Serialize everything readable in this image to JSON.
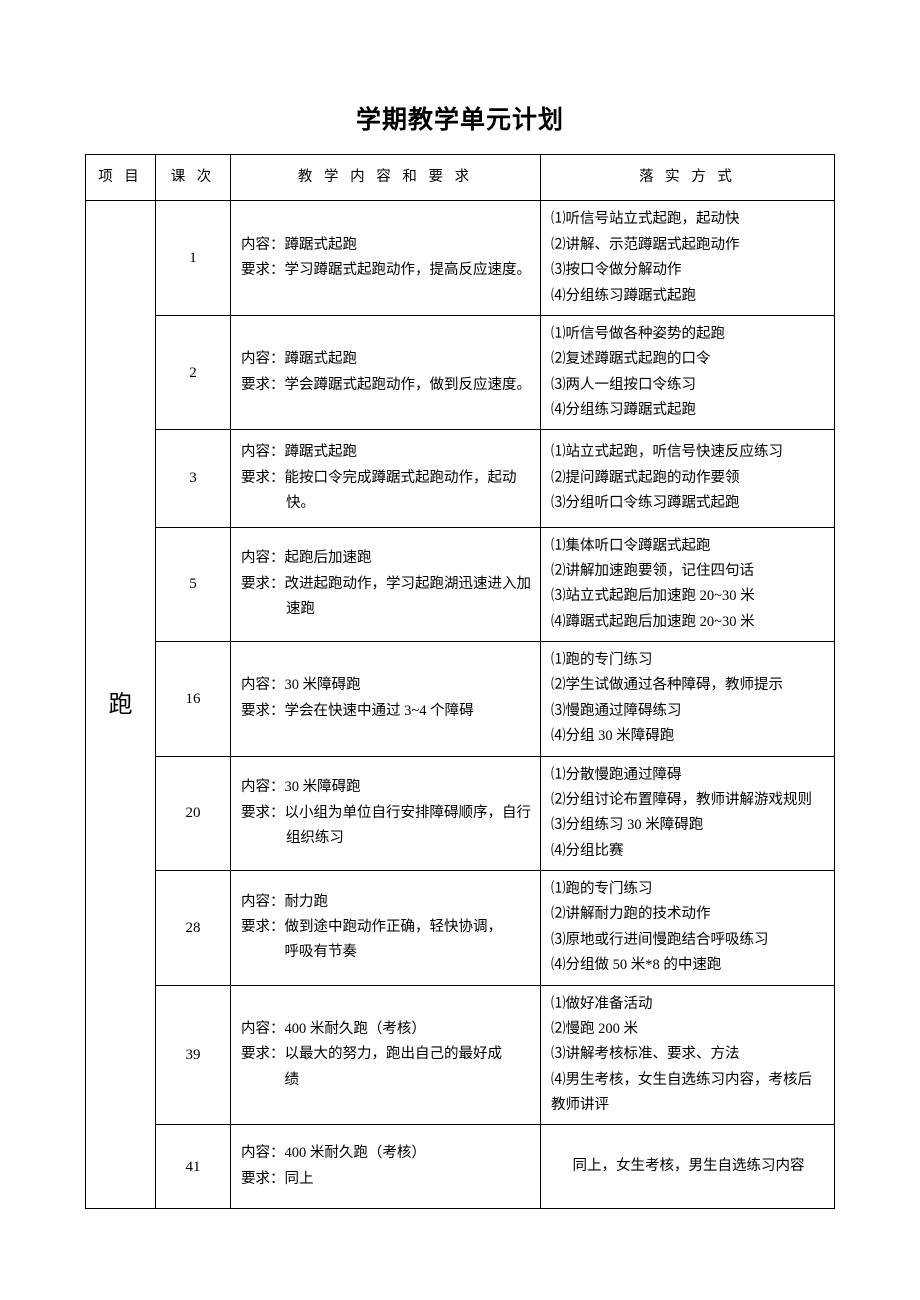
{
  "title": "学期教学单元计划",
  "headers": {
    "project": "项 目",
    "lesson": "课 次",
    "content": "教 学 内 容 和 要 求",
    "method": "落  实  方  式"
  },
  "project": "跑",
  "rows": [
    {
      "lesson": "1",
      "content_l1": "内容：蹲踞式起跑",
      "content_l2": "要求：学习蹲踞式起跑动作，提高反应速度。",
      "methods": [
        "⑴听信号站立式起跑，起动快",
        "⑵讲解、示范蹲踞式起跑动作",
        "⑶按口令做分解动作",
        "⑷分组练习蹲踞式起跑"
      ]
    },
    {
      "lesson": "2",
      "content_l1": "内容：蹲踞式起跑",
      "content_l2": "要求：学会蹲踞式起跑动作，做到反应速度。",
      "methods": [
        "⑴听信号做各种姿势的起跑",
        "⑵复述蹲踞式起跑的口令",
        "⑶两人一组按口令练习",
        "⑷分组练习蹲踞式起跑"
      ]
    },
    {
      "lesson": "3",
      "content_l1": "内容：蹲踞式起跑",
      "content_l2": "要求：能按口令完成蹲踞式起跑动作，起动快。",
      "methods": [
        "⑴站立式起跑，听信号快速反应练习",
        "⑵提问蹲踞式起跑的动作要领",
        "⑶分组听口令练习蹲踞式起跑"
      ]
    },
    {
      "lesson": "5",
      "content_l1": "内容：起跑后加速跑",
      "content_l2": "要求：改进起跑动作，学习起跑湖迅速进入加速跑",
      "methods": [
        "⑴集体听口令蹲踞式起跑",
        "⑵讲解加速跑要领，记住四句话",
        "⑶站立式起跑后加速跑 20~30 米",
        "⑷蹲踞式起跑后加速跑 20~30 米"
      ]
    },
    {
      "lesson": "16",
      "content_l1": "内容：30 米障碍跑",
      "content_l2": "要求：学会在快速中通过 3~4 个障碍",
      "methods": [
        "⑴跑的专门练习",
        "⑵学生试做通过各种障碍，教师提示",
        "⑶慢跑通过障碍练习",
        "⑷分组 30 米障碍跑"
      ]
    },
    {
      "lesson": "20",
      "content_l1": "内容：30 米障碍跑",
      "content_l2": "要求：以小组为单位自行安排障碍顺序，自行组织练习",
      "methods": [
        "⑴分散慢跑通过障碍",
        "⑵分组讨论布置障碍，教师讲解游戏规则",
        "⑶分组练习 30 米障碍跑",
        "⑷分组比赛"
      ]
    },
    {
      "lesson": "28",
      "content_l1": "内容：耐力跑",
      "content_l2": "要求：做到途中跑动作正确，轻快协调，",
      "content_l3": "呼吸有节奏",
      "methods": [
        "⑴跑的专门练习",
        "⑵讲解耐力跑的技术动作",
        "⑶原地或行进间慢跑结合呼吸练习",
        "⑷分组做 50 米*8 的中速跑"
      ]
    },
    {
      "lesson": "39",
      "content_l1": "内容：400 米耐久跑（考核）",
      "content_l2": "要求：以最大的努力，跑出自己的最好成",
      "content_l3": "绩",
      "methods": [
        "⑴做好准备活动",
        "⑵慢跑 200 米",
        "⑶讲解考核标准、要求、方法",
        "⑷男生考核，女生自选练习内容，考核后教师讲评"
      ]
    },
    {
      "lesson": "41",
      "content_l1": "内容：400 米耐久跑（考核）",
      "content_l2": "要求：同上",
      "method_single": "同上，女生考核，男生自选练习内容"
    }
  ]
}
